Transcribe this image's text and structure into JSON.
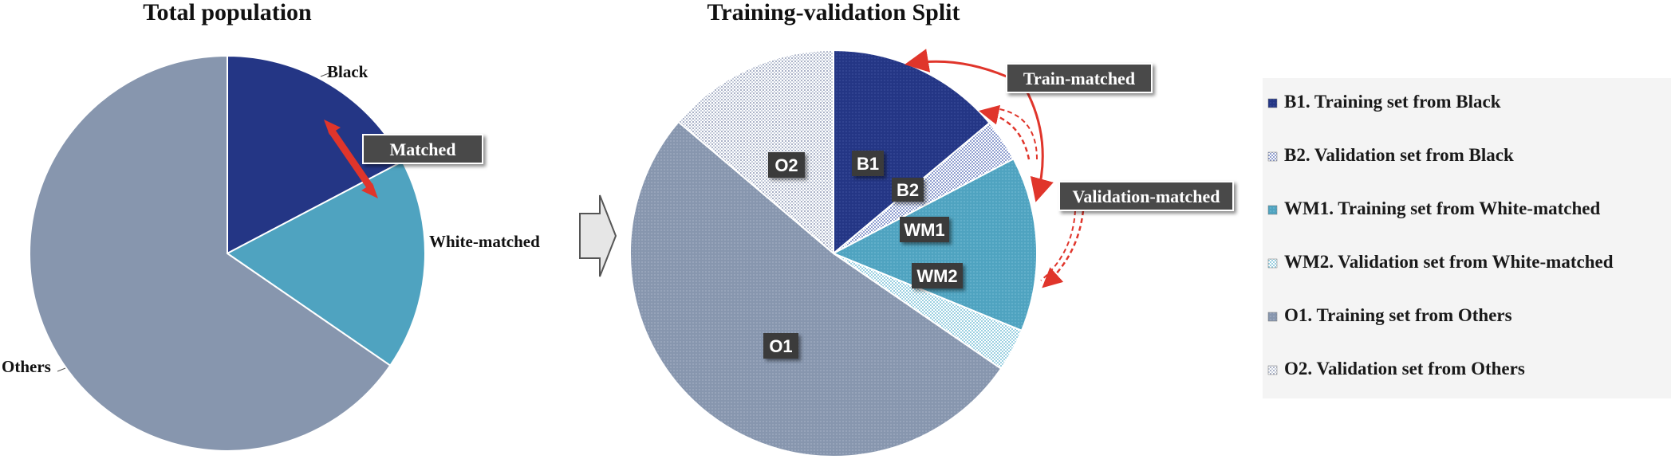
{
  "colors": {
    "black": "#243685",
    "white_matched": "#4fa3c0",
    "others": "#8796ae",
    "arrow": "#e0352b",
    "tag_bg": "#4a4a4a",
    "legend_bg": "#f4f4f4"
  },
  "chart_data": [
    {
      "type": "pie",
      "title": "Total population",
      "slices": [
        {
          "label": "Black",
          "value": 17.3
        },
        {
          "label": "White-matched",
          "value": 17.3
        },
        {
          "label": "Others",
          "value": 65.4
        }
      ],
      "annotation": "Matched"
    },
    {
      "type": "pie",
      "title": "Training-validation Split",
      "slices": [
        {
          "label": "B1",
          "value": 13.9,
          "legend": "B1. Training set from Black"
        },
        {
          "label": "B2",
          "value": 3.4,
          "legend": "B2. Validation set from Black"
        },
        {
          "label": "WM1",
          "value": 13.9,
          "legend": "WM1. Training set from White-matched"
        },
        {
          "label": "WM2",
          "value": 3.4,
          "legend": "WM2. Validation set from White-matched"
        },
        {
          "label": "O1",
          "value": 51.6,
          "legend": "O1. Training set from Others"
        },
        {
          "label": "O2",
          "value": 13.8,
          "legend": "O2. Validation set from Others"
        }
      ],
      "annotations": [
        "Train-matched",
        "Validation-matched"
      ]
    }
  ]
}
